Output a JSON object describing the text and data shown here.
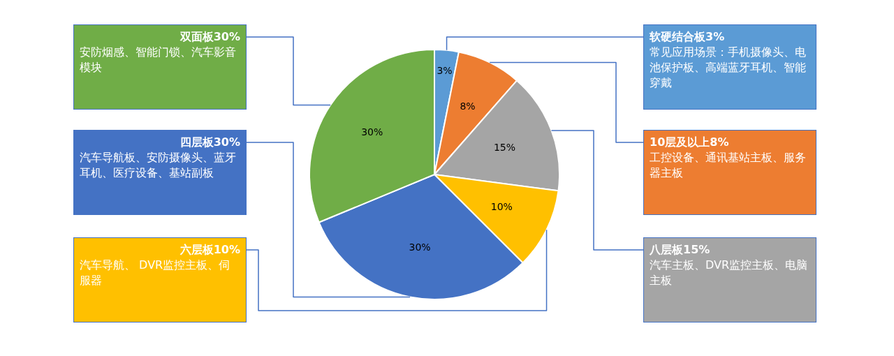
{
  "chart_data": {
    "type": "pie",
    "categories": [
      "软硬结合板",
      "10层及以上",
      "八层板",
      "六层板",
      "四层板",
      "双面板"
    ],
    "values": [
      3,
      8,
      15,
      10,
      30,
      30
    ],
    "value_labels": [
      "3%",
      "8%",
      "15%",
      "10%",
      "30%",
      "30%"
    ],
    "colors": [
      "#5b9bd5",
      "#ed7d31",
      "#a5a5a5",
      "#ffc000",
      "#4472c4",
      "#70ad47"
    ],
    "annotations": [
      "常见应用场景：手机摄像头、电池保护板、高端蓝牙耳机、智能穿戴",
      "工控设备、通讯基站主板、服务器主板",
      "汽车主板、DVR监控主板、电脑主板",
      "汽车导航、 DVR监控主板、伺服器",
      "汽车导航板、安防摄像头、蓝牙耳机、医疗设备、基站副板",
      "安防烟感、智能门锁、汽车影音模块"
    ],
    "legend": false
  }
}
